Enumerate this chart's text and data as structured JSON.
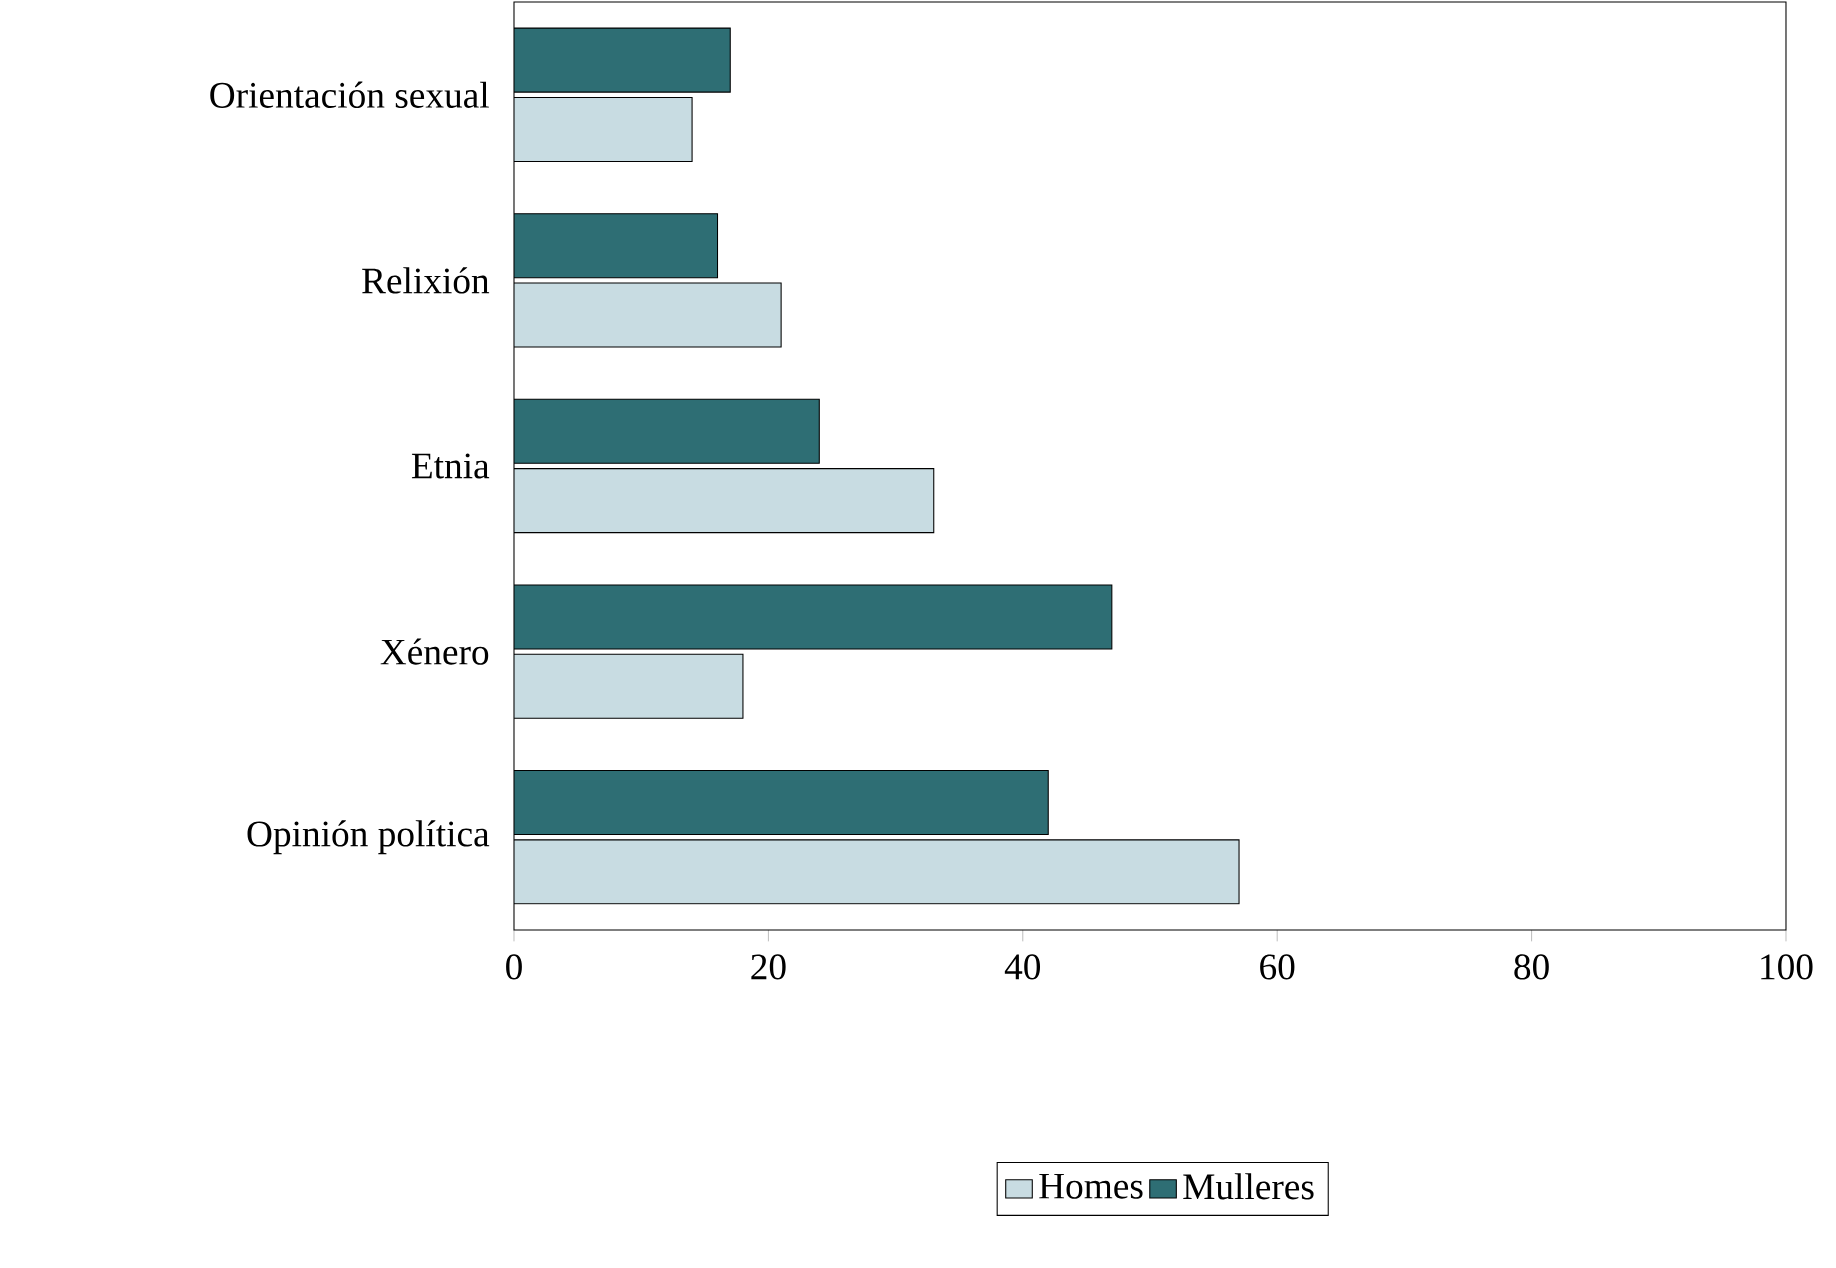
{
  "chart_data": {
    "type": "bar",
    "orientation": "horizontal",
    "categories": [
      "Orientación sexual",
      "Relixión",
      "Etnia",
      "Xénero",
      "Opinión política"
    ],
    "series": [
      {
        "name": "Homes",
        "color": "#c8dce2",
        "values": [
          14,
          21,
          33,
          18,
          57
        ]
      },
      {
        "name": "Mulleres",
        "color": "#2e6e74",
        "values": [
          17,
          16,
          24,
          47,
          42
        ]
      }
    ],
    "xlim": [
      0,
      100
    ],
    "xticks": [
      0,
      20,
      40,
      60,
      80,
      100
    ],
    "legend": "bottom",
    "grid": false
  }
}
